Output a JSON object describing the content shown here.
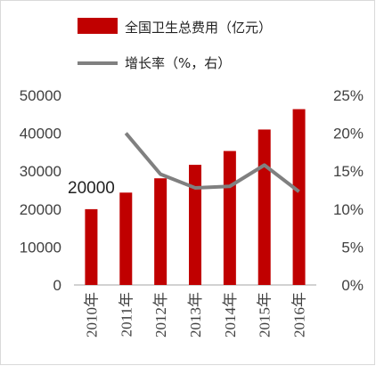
{
  "chart_data": {
    "type": "bar",
    "categories": [
      "2010年",
      "2011年",
      "2012年",
      "2013年",
      "2014年",
      "2015年",
      "2016年"
    ],
    "series": [
      {
        "name": "全国卫生总费用（亿元）",
        "type": "bar",
        "axis": "left",
        "color": "#c00000",
        "values": [
          19980,
          24346,
          28119,
          31669,
          35312,
          40975,
          46345
        ]
      },
      {
        "name": "增长率（%，右）",
        "type": "line",
        "axis": "right",
        "color": "#808080",
        "values": [
          null,
          20.0,
          14.6,
          12.8,
          13.0,
          15.8,
          12.3
        ]
      }
    ],
    "y_left": {
      "min": 0,
      "max": 50000,
      "ticks": [
        "0",
        "10000",
        "20000",
        "30000",
        "40000",
        "50000"
      ]
    },
    "y_right": {
      "min": 0,
      "max": 25,
      "ticks": [
        "0%",
        "5%",
        "10%",
        "15%",
        "20%",
        "25%"
      ]
    },
    "annotations": [
      {
        "text": "20000"
      }
    ],
    "legend_position": "top",
    "grid": false
  }
}
